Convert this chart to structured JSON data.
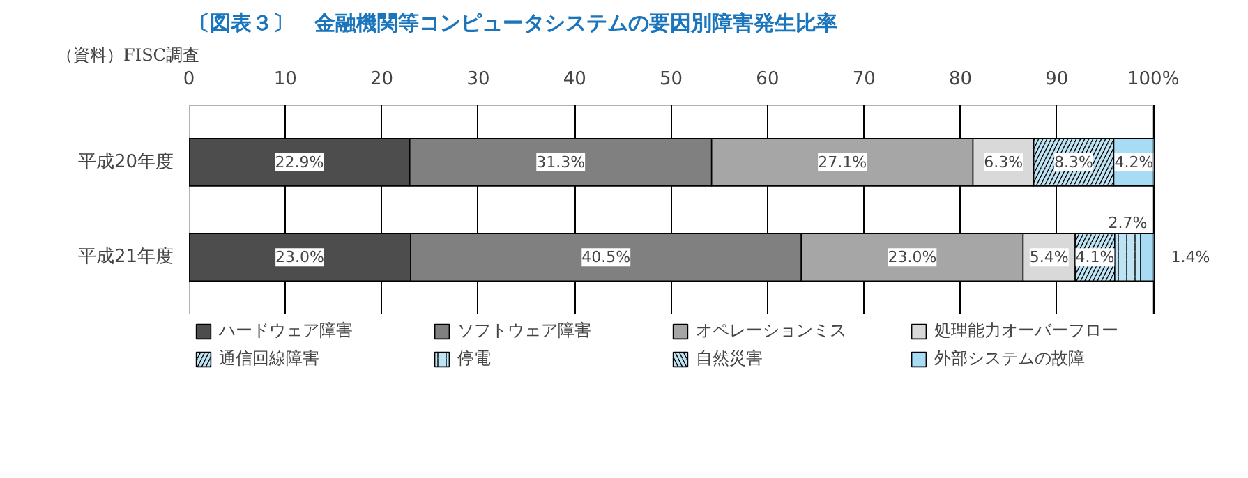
{
  "chart_data": {
    "type": "bar",
    "orientation": "horizontal",
    "stacked": true,
    "title": "〔図表３〕　金融機関等コンピュータシステムの要因別障害発生比率",
    "categories": [
      "平成20年度",
      "平成21年度"
    ],
    "xlim": [
      0,
      100
    ],
    "xticks": [
      0,
      10,
      20,
      30,
      40,
      50,
      60,
      70,
      80,
      90,
      {
        "value": 100,
        "label": "100%"
      }
    ],
    "grid": "x",
    "legend": "bottom",
    "series": [
      {
        "name": "ハードウェア障害",
        "color": "#4d4d4d",
        "values": [
          22.9,
          23.0
        ],
        "value_labels": [
          "22.9%",
          "23.0%"
        ]
      },
      {
        "name": "ソフトウェア障害",
        "color": "#808080",
        "values": [
          31.3,
          40.5
        ],
        "value_labels": [
          "31.3%",
          "40.5%"
        ]
      },
      {
        "name": "オペレーションミス",
        "color": "#a6a6a6",
        "values": [
          27.1,
          23.0
        ],
        "value_labels": [
          "27.1%",
          "23.0%"
        ]
      },
      {
        "name": "処理能力オーバーフロー",
        "color": "#d9d9d9",
        "values": [
          6.3,
          5.4
        ],
        "value_labels": [
          "6.3%",
          "5.4%"
        ]
      },
      {
        "name": "通信回線障害",
        "color": "#bfe3f2",
        "values": [
          8.3,
          4.1
        ],
        "value_labels": [
          "8.3%",
          "4.1%"
        ]
      },
      {
        "name": "停電",
        "color": "#bfe3f2",
        "values": [
          null,
          2.7
        ],
        "value_labels": [
          null,
          "2.7%"
        ]
      },
      {
        "name": "自然災害",
        "color": "#bfe3f2",
        "values": [
          null,
          null
        ],
        "value_labels": [
          null,
          null
        ]
      },
      {
        "name": "外部システムの故障",
        "color": "#a8dcf5",
        "values": [
          4.2,
          1.4
        ],
        "value_labels": [
          "4.2%",
          "1.4%"
        ]
      }
    ],
    "annotations": [
      "（資料）FISC調査"
    ]
  }
}
